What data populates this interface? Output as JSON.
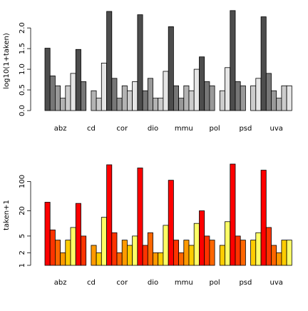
{
  "chart_data": [
    {
      "type": "bar",
      "scale": "linear",
      "ylabel": "log10(1+taken)",
      "ylim": [
        0,
        2.4
      ],
      "yticks": [
        {
          "value": 0.0,
          "label": "0.0"
        },
        {
          "value": 0.5,
          "label": "0.5"
        },
        {
          "value": 1.0,
          "label": "1.0"
        },
        {
          "value": 1.5,
          "label": "1.5"
        },
        {
          "value": 2.0,
          "label": "2.0"
        }
      ],
      "categories": [
        "abz",
        "cd",
        "cor",
        "dio",
        "mmu",
        "pol",
        "psd",
        "uva"
      ],
      "fill_colors": [
        "#4d4d4d",
        "#777777",
        "#999999",
        "#b3b3b3",
        "#cccccc",
        "#e6e6e6"
      ],
      "groups": [
        [
          1.51,
          0.84,
          0.6,
          0.3,
          0.6,
          0.9
        ],
        [
          1.48,
          0.7,
          0.0,
          0.48,
          0.3,
          1.15
        ],
        [
          2.4,
          0.78,
          0.3,
          0.6,
          0.48,
          0.7
        ],
        [
          2.32,
          0.48,
          0.78,
          0.3,
          0.3,
          0.95
        ],
        [
          2.03,
          0.6,
          0.3,
          0.6,
          0.48,
          1.0
        ],
        [
          1.3,
          0.7,
          0.6,
          0.0,
          0.48,
          1.04
        ],
        [
          2.42,
          0.7,
          0.6,
          0.0,
          0.6,
          0.78
        ],
        [
          2.27,
          0.9,
          0.48,
          0.3,
          0.6,
          0.6
        ]
      ],
      "grid": false,
      "legend": "none"
    },
    {
      "type": "bar",
      "scale": "log",
      "ylabel": "taken+1",
      "ylim": [
        1,
        250
      ],
      "yticks": [
        {
          "value": 1,
          "label": "1"
        },
        {
          "value": 2,
          "label": "2"
        },
        {
          "value": 5,
          "label": "5"
        },
        {
          "value": 20,
          "label": "20"
        },
        {
          "value": 100,
          "label": "100"
        }
      ],
      "categories": [
        "abz",
        "cd",
        "cor",
        "dio",
        "mmu",
        "pol",
        "psd",
        "uva"
      ],
      "fill_colors": [
        "#ff0000",
        "#ff3300",
        "#ff6600",
        "#ff9900",
        "#ffcc00",
        "#ffff66"
      ],
      "groups": [
        [
          32,
          7,
          4,
          2,
          4,
          8
        ],
        [
          30,
          5,
          1,
          3,
          2,
          14
        ],
        [
          250,
          6,
          2,
          4,
          3,
          5
        ],
        [
          210,
          3,
          6,
          2,
          2,
          9
        ],
        [
          107,
          4,
          2,
          4,
          3,
          10
        ],
        [
          20,
          5,
          4,
          1,
          3,
          11
        ],
        [
          260,
          5,
          4,
          1,
          4,
          6
        ],
        [
          186,
          8,
          3,
          2,
          4,
          4
        ]
      ],
      "grid": false,
      "legend": "none"
    }
  ]
}
